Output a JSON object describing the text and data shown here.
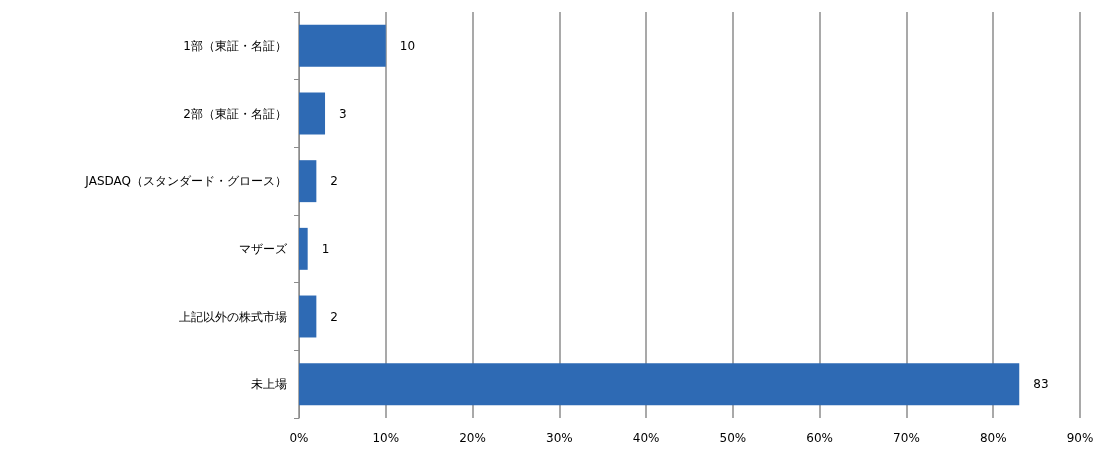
{
  "chart_data": {
    "type": "bar",
    "orientation": "horizontal",
    "categories": [
      "1部（東証・名証）",
      "2部（東証・名証）",
      "JASDAQ（スタンダード・グロース）",
      "マザーズ",
      "上記以外の株式市場",
      "未上場"
    ],
    "values": [
      10,
      3,
      2,
      1,
      2,
      83
    ],
    "color": "#2e6ab4",
    "data_labels": true,
    "xlim": [
      0,
      90
    ],
    "xticks": [
      {
        "value": 0,
        "label": "0%"
      },
      {
        "value": 10,
        "label": "10%"
      },
      {
        "value": 20,
        "label": "20%"
      },
      {
        "value": 30,
        "label": "30%"
      },
      {
        "value": 40,
        "label": "40%"
      },
      {
        "value": 50,
        "label": "50%"
      },
      {
        "value": 60,
        "label": "60%"
      },
      {
        "value": 70,
        "label": "70%"
      },
      {
        "value": 80,
        "label": "80%"
      },
      {
        "value": 90,
        "label": "90%"
      }
    ],
    "grid": "x"
  }
}
